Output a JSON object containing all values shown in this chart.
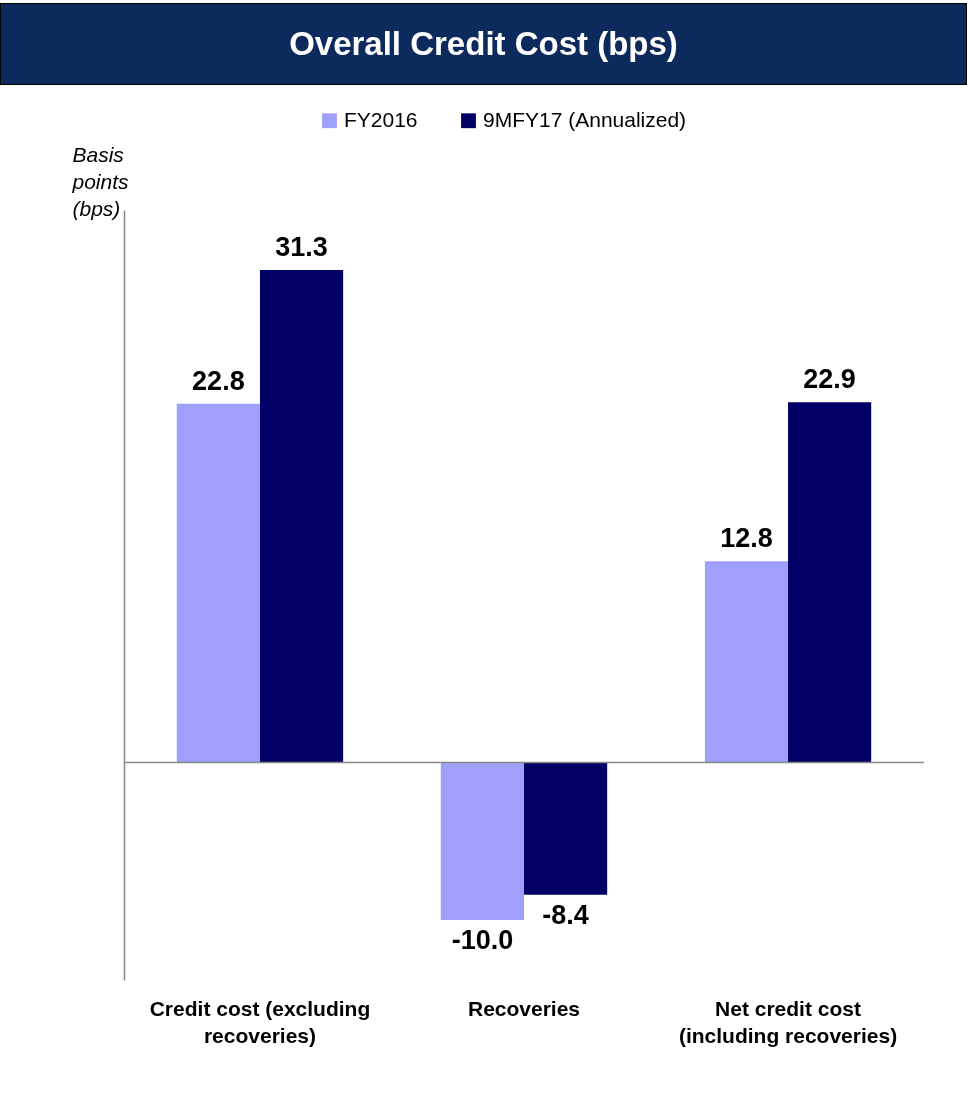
{
  "chart_data": {
    "type": "bar",
    "title": "Overall Credit Cost (bps)",
    "ylabel": "Basis points (bps)",
    "categories": [
      "Credit cost (excluding recoveries)",
      "Recoveries",
      "Net credit cost (including recoveries)"
    ],
    "series": [
      {
        "name": "FY2016",
        "color": "#9f9ffc",
        "values": [
          22.8,
          -10.0,
          12.8
        ],
        "value_labels": [
          "22.8",
          "-10.0",
          "12.8"
        ]
      },
      {
        "name": "9MFY17 (Annualized)",
        "color": "#000066",
        "values": [
          31.3,
          -8.4,
          22.9
        ],
        "value_labels": [
          "31.3",
          "-8.4",
          "22.9"
        ]
      }
    ],
    "legend": "top",
    "grid": false
  }
}
